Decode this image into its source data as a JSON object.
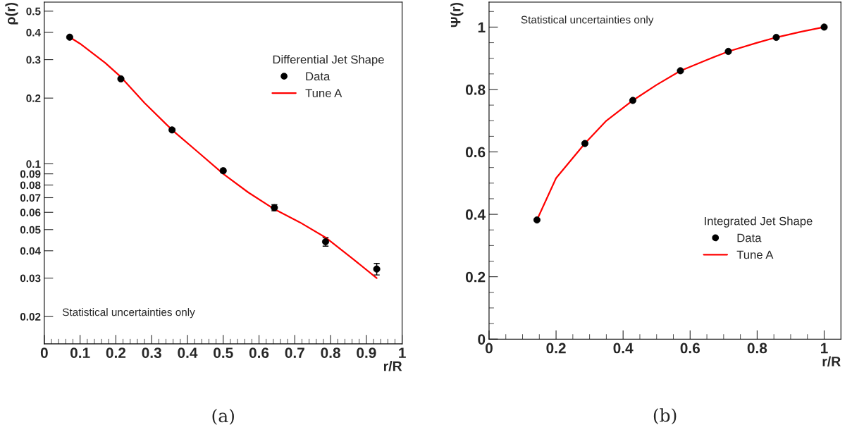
{
  "chart_data": [
    {
      "type": "line",
      "xlabel": "r/R",
      "ylabel": "ρ(r)",
      "legend_title": "Differential Jet Shape",
      "legend": "right",
      "log": "y",
      "grid": false,
      "annotations": [
        "Statistical uncertainties only",
        "(a)"
      ],
      "xlim": [
        0,
        1
      ],
      "ylim": [
        0.015,
        0.55
      ],
      "xticks": [
        0,
        {
          "value": 0.02,
          "label": null
        },
        {
          "value": 0.04,
          "label": null
        },
        {
          "value": 0.06,
          "label": null
        },
        {
          "value": 0.08,
          "label": null
        },
        0.1,
        {
          "value": 0.12,
          "label": null
        },
        {
          "value": 0.14,
          "label": null
        },
        {
          "value": 0.16,
          "label": null
        },
        {
          "value": 0.18,
          "label": null
        },
        0.2,
        {
          "value": 0.22,
          "label": null
        },
        {
          "value": 0.24,
          "label": null
        },
        {
          "value": 0.26,
          "label": null
        },
        {
          "value": 0.28,
          "label": null
        },
        0.3,
        {
          "value": 0.32,
          "label": null
        },
        {
          "value": 0.34,
          "label": null
        },
        {
          "value": 0.36,
          "label": null
        },
        {
          "value": 0.38,
          "label": null
        },
        0.4,
        {
          "value": 0.42,
          "label": null
        },
        {
          "value": 0.44,
          "label": null
        },
        {
          "value": 0.46,
          "label": null
        },
        {
          "value": 0.48,
          "label": null
        },
        0.5,
        {
          "value": 0.52,
          "label": null
        },
        {
          "value": 0.54,
          "label": null
        },
        {
          "value": 0.56,
          "label": null
        },
        {
          "value": 0.58,
          "label": null
        },
        0.6,
        {
          "value": 0.62,
          "label": null
        },
        {
          "value": 0.64,
          "label": null
        },
        {
          "value": 0.66,
          "label": null
        },
        {
          "value": 0.68,
          "label": null
        },
        0.7,
        {
          "value": 0.72,
          "label": null
        },
        {
          "value": 0.74,
          "label": null
        },
        {
          "value": 0.76,
          "label": null
        },
        {
          "value": 0.78,
          "label": null
        },
        0.8,
        {
          "value": 0.82,
          "label": null
        },
        {
          "value": 0.84,
          "label": null
        },
        {
          "value": 0.86,
          "label": null
        },
        {
          "value": 0.88,
          "label": null
        },
        0.9,
        {
          "value": 0.92,
          "label": null
        },
        {
          "value": 0.94,
          "label": null
        },
        {
          "value": 0.96,
          "label": null
        },
        {
          "value": 0.98,
          "label": null
        },
        1
      ],
      "yticks": [
        0.02,
        0.03,
        0.04,
        0.05,
        0.06,
        0.07,
        0.08,
        0.09,
        0.1,
        0.2,
        0.3,
        0.4,
        0.5
      ],
      "series": [
        {
          "name": "Data",
          "type": "scatter",
          "marker": "circle",
          "color": "#000000",
          "x": [
            0.071,
            0.214,
            0.357,
            0.5,
            0.643,
            0.786,
            0.929
          ],
          "values": [
            0.38,
            0.245,
            0.143,
            0.093,
            0.063,
            0.044,
            0.033
          ],
          "errors": [
            null,
            null,
            0.002,
            0.002,
            0.002,
            0.002,
            0.002
          ]
        },
        {
          "name": "Tune A",
          "line_style": "solid",
          "color": "#ff0000",
          "x": [
            0.071,
            0.1,
            0.17,
            0.214,
            0.28,
            0.357,
            0.43,
            0.5,
            0.57,
            0.643,
            0.714,
            0.786,
            0.86,
            0.929
          ],
          "values": [
            0.38,
            0.355,
            0.29,
            0.25,
            0.19,
            0.143,
            0.113,
            0.09,
            0.074,
            0.062,
            0.054,
            0.046,
            0.037,
            0.03
          ]
        }
      ]
    },
    {
      "type": "line",
      "xlabel": "r/R",
      "ylabel": "Ψ(r)",
      "legend_title": "Integrated Jet Shape",
      "legend": "bottom right",
      "grid": false,
      "annotations": [
        "Statistical uncertainties only",
        "(b)"
      ],
      "xlim": [
        0,
        1.05
      ],
      "ylim": [
        0,
        1.08
      ],
      "xticks": [
        0,
        {
          "value": 0.05,
          "label": null
        },
        {
          "value": 0.1,
          "label": null
        },
        {
          "value": 0.15,
          "label": null
        },
        0.2,
        {
          "value": 0.25,
          "label": null
        },
        {
          "value": 0.3,
          "label": null
        },
        {
          "value": 0.35,
          "label": null
        },
        0.4,
        {
          "value": 0.45,
          "label": null
        },
        {
          "value": 0.5,
          "label": null
        },
        {
          "value": 0.55,
          "label": null
        },
        0.6,
        {
          "value": 0.65,
          "label": null
        },
        {
          "value": 0.7,
          "label": null
        },
        {
          "value": 0.75,
          "label": null
        },
        0.8,
        {
          "value": 0.85,
          "label": null
        },
        {
          "value": 0.9,
          "label": null
        },
        {
          "value": 0.95,
          "label": null
        },
        1
      ],
      "yticks": [
        0,
        {
          "value": 0.05,
          "label": null
        },
        {
          "value": 0.1,
          "label": null
        },
        {
          "value": 0.15,
          "label": null
        },
        0.2,
        {
          "value": 0.25,
          "label": null
        },
        {
          "value": 0.3,
          "label": null
        },
        {
          "value": 0.35,
          "label": null
        },
        0.4,
        {
          "value": 0.45,
          "label": null
        },
        {
          "value": 0.5,
          "label": null
        },
        {
          "value": 0.55,
          "label": null
        },
        0.6,
        {
          "value": 0.65,
          "label": null
        },
        {
          "value": 0.7,
          "label": null
        },
        {
          "value": 0.75,
          "label": null
        },
        0.8,
        {
          "value": 0.85,
          "label": null
        },
        {
          "value": 0.9,
          "label": null
        },
        {
          "value": 0.95,
          "label": null
        },
        1,
        {
          "value": 1.05,
          "label": null
        }
      ],
      "series": [
        {
          "name": "Data",
          "type": "scatter",
          "marker": "circle",
          "color": "#000000",
          "x": [
            0.143,
            0.286,
            0.429,
            0.571,
            0.714,
            0.857,
            1.0
          ],
          "values": [
            0.382,
            0.627,
            0.765,
            0.86,
            0.922,
            0.967,
            1.0
          ]
        },
        {
          "name": "Tune A",
          "line_style": "solid",
          "color": "#ff0000",
          "x": [
            0.143,
            0.2,
            0.286,
            0.35,
            0.429,
            0.5,
            0.571,
            0.65,
            0.714,
            0.8,
            0.857,
            0.93,
            1.0
          ],
          "values": [
            0.382,
            0.516,
            0.627,
            0.7,
            0.765,
            0.815,
            0.86,
            0.895,
            0.922,
            0.95,
            0.967,
            0.985,
            1.0
          ]
        }
      ]
    }
  ]
}
